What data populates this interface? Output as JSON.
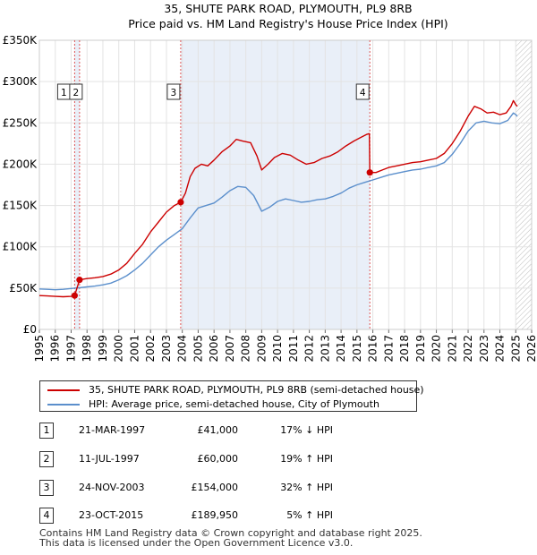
{
  "chart_data": {
    "type": "line",
    "title": "35, SHUTE PARK ROAD, PLYMOUTH, PL9 8RB",
    "subtitle": "Price paid vs. HM Land Registry's House Price Index (HPI)",
    "xlim": [
      1995,
      2026
    ],
    "ylim": [
      0,
      350000
    ],
    "x_ticks": [
      "1995",
      "1996",
      "1997",
      "1998",
      "1999",
      "2000",
      "2001",
      "2002",
      "2003",
      "2004",
      "2005",
      "2006",
      "2007",
      "2008",
      "2009",
      "2010",
      "2011",
      "2012",
      "2013",
      "2014",
      "2015",
      "2016",
      "2017",
      "2018",
      "2019",
      "2020",
      "2021",
      "2022",
      "2023",
      "2024",
      "2025",
      "2026"
    ],
    "y_ticks": [
      {
        "value": 0,
        "label": "£0"
      },
      {
        "value": 50000,
        "label": "£50K"
      },
      {
        "value": 100000,
        "label": "£100K"
      },
      {
        "value": 150000,
        "label": "£150K"
      },
      {
        "value": 200000,
        "label": "£200K"
      },
      {
        "value": 250000,
        "label": "£250K"
      },
      {
        "value": 300000,
        "label": "£300K"
      },
      {
        "value": 350000,
        "label": "£350K"
      }
    ],
    "grid": true,
    "shaded_periods": [
      [
        1997.22,
        1997.53
      ],
      [
        2003.9,
        2015.81
      ]
    ],
    "future_hatch_from": 2025.0,
    "series": [
      {
        "name": "35, SHUTE PARK ROAD, PLYMOUTH, PL9 8RB (semi-detached house)",
        "color": "#cc0000",
        "points": [
          [
            1995.0,
            41000
          ],
          [
            1995.5,
            40500
          ],
          [
            1996.0,
            40000
          ],
          [
            1996.5,
            39500
          ],
          [
            1997.0,
            40000
          ],
          [
            1997.22,
            41000
          ],
          [
            1997.53,
            60000
          ],
          [
            1998.0,
            61500
          ],
          [
            1998.5,
            62500
          ],
          [
            1999.0,
            64000
          ],
          [
            1999.5,
            67000
          ],
          [
            2000.0,
            72000
          ],
          [
            2000.5,
            80000
          ],
          [
            2001.0,
            92000
          ],
          [
            2001.5,
            103000
          ],
          [
            2002.0,
            118000
          ],
          [
            2002.5,
            130000
          ],
          [
            2003.0,
            142000
          ],
          [
            2003.5,
            150000
          ],
          [
            2003.9,
            154000
          ],
          [
            2004.2,
            165000
          ],
          [
            2004.5,
            185000
          ],
          [
            2004.8,
            195000
          ],
          [
            2005.2,
            200000
          ],
          [
            2005.6,
            198000
          ],
          [
            2006.0,
            205000
          ],
          [
            2006.5,
            215000
          ],
          [
            2007.0,
            222000
          ],
          [
            2007.4,
            230000
          ],
          [
            2007.8,
            228000
          ],
          [
            2008.3,
            226000
          ],
          [
            2008.7,
            210000
          ],
          [
            2009.0,
            193000
          ],
          [
            2009.4,
            200000
          ],
          [
            2009.8,
            208000
          ],
          [
            2010.3,
            213000
          ],
          [
            2010.8,
            211000
          ],
          [
            2011.3,
            205000
          ],
          [
            2011.8,
            200000
          ],
          [
            2012.3,
            202000
          ],
          [
            2012.8,
            207000
          ],
          [
            2013.3,
            210000
          ],
          [
            2013.8,
            215000
          ],
          [
            2014.3,
            222000
          ],
          [
            2014.8,
            228000
          ],
          [
            2015.2,
            232000
          ],
          [
            2015.6,
            236000
          ],
          [
            2015.78,
            237000
          ],
          [
            2015.81,
            189950
          ],
          [
            2016.2,
            190000
          ],
          [
            2016.6,
            193000
          ],
          [
            2017.0,
            196000
          ],
          [
            2017.5,
            198000
          ],
          [
            2018.0,
            200000
          ],
          [
            2018.5,
            202000
          ],
          [
            2019.0,
            203000
          ],
          [
            2019.5,
            205000
          ],
          [
            2020.0,
            207000
          ],
          [
            2020.5,
            213000
          ],
          [
            2021.0,
            225000
          ],
          [
            2021.5,
            240000
          ],
          [
            2022.0,
            258000
          ],
          [
            2022.4,
            270000
          ],
          [
            2022.8,
            267000
          ],
          [
            2023.2,
            262000
          ],
          [
            2023.6,
            263000
          ],
          [
            2024.0,
            260000
          ],
          [
            2024.4,
            262000
          ],
          [
            2024.7,
            270000
          ],
          [
            2024.85,
            277000
          ],
          [
            2025.0,
            272000
          ],
          [
            2025.1,
            270000
          ]
        ]
      },
      {
        "name": "HPI: Average price, semi-detached house, City of Plymouth",
        "color": "#5b8fcc",
        "points": [
          [
            1995.0,
            49000
          ],
          [
            1995.5,
            48500
          ],
          [
            1996.0,
            48000
          ],
          [
            1996.5,
            48500
          ],
          [
            1997.0,
            49500
          ],
          [
            1997.5,
            50500
          ],
          [
            1998.0,
            51500
          ],
          [
            1998.5,
            52500
          ],
          [
            1999.0,
            54000
          ],
          [
            1999.5,
            56000
          ],
          [
            2000.0,
            60000
          ],
          [
            2000.5,
            65000
          ],
          [
            2001.0,
            72000
          ],
          [
            2001.5,
            80000
          ],
          [
            2002.0,
            90000
          ],
          [
            2002.5,
            100000
          ],
          [
            2003.0,
            108000
          ],
          [
            2003.5,
            115000
          ],
          [
            2004.0,
            122000
          ],
          [
            2004.5,
            135000
          ],
          [
            2005.0,
            147000
          ],
          [
            2005.5,
            150000
          ],
          [
            2006.0,
            153000
          ],
          [
            2006.5,
            160000
          ],
          [
            2007.0,
            168000
          ],
          [
            2007.5,
            173000
          ],
          [
            2008.0,
            172000
          ],
          [
            2008.5,
            162000
          ],
          [
            2009.0,
            143000
          ],
          [
            2009.5,
            148000
          ],
          [
            2010.0,
            155000
          ],
          [
            2010.5,
            158000
          ],
          [
            2011.0,
            156000
          ],
          [
            2011.5,
            154000
          ],
          [
            2012.0,
            155000
          ],
          [
            2012.5,
            157000
          ],
          [
            2013.0,
            158000
          ],
          [
            2013.5,
            161000
          ],
          [
            2014.0,
            165000
          ],
          [
            2014.5,
            171000
          ],
          [
            2015.0,
            175000
          ],
          [
            2015.5,
            178000
          ],
          [
            2016.0,
            181000
          ],
          [
            2016.5,
            184000
          ],
          [
            2017.0,
            187000
          ],
          [
            2017.5,
            189000
          ],
          [
            2018.0,
            191000
          ],
          [
            2018.5,
            193000
          ],
          [
            2019.0,
            194000
          ],
          [
            2019.5,
            196000
          ],
          [
            2020.0,
            198000
          ],
          [
            2020.5,
            202000
          ],
          [
            2021.0,
            212000
          ],
          [
            2021.5,
            225000
          ],
          [
            2022.0,
            240000
          ],
          [
            2022.5,
            250000
          ],
          [
            2023.0,
            252000
          ],
          [
            2023.5,
            250000
          ],
          [
            2024.0,
            249000
          ],
          [
            2024.5,
            253000
          ],
          [
            2024.85,
            262000
          ],
          [
            2025.0,
            260000
          ],
          [
            2025.1,
            258000
          ]
        ]
      }
    ],
    "sales": [
      {
        "id": "1",
        "x": 1997.22,
        "price": 41000
      },
      {
        "id": "2",
        "x": 1997.53,
        "price": 60000
      },
      {
        "id": "3",
        "x": 2003.9,
        "price": 154000
      },
      {
        "id": "4",
        "x": 2015.81,
        "price": 189950
      }
    ]
  },
  "legend": {
    "property": "35, SHUTE PARK ROAD, PLYMOUTH, PL9 8RB (semi-detached house)",
    "hpi": "HPI: Average price, semi-detached house, City of Plymouth"
  },
  "transactions": [
    {
      "num": "1",
      "date": "21-MAR-1997",
      "price": "£41,000",
      "hpi": "17% ↓ HPI"
    },
    {
      "num": "2",
      "date": "11-JUL-1997",
      "price": "£60,000",
      "hpi": "19% ↑ HPI"
    },
    {
      "num": "3",
      "date": "24-NOV-2003",
      "price": "£154,000",
      "hpi": "32% ↑ HPI"
    },
    {
      "num": "4",
      "date": "23-OCT-2015",
      "price": "£189,950",
      "hpi": "5% ↑ HPI"
    }
  ],
  "footer": {
    "line1": "Contains HM Land Registry data © Crown copyright and database right 2025.",
    "line2": "This data is licensed under the Open Government Licence v3.0."
  }
}
